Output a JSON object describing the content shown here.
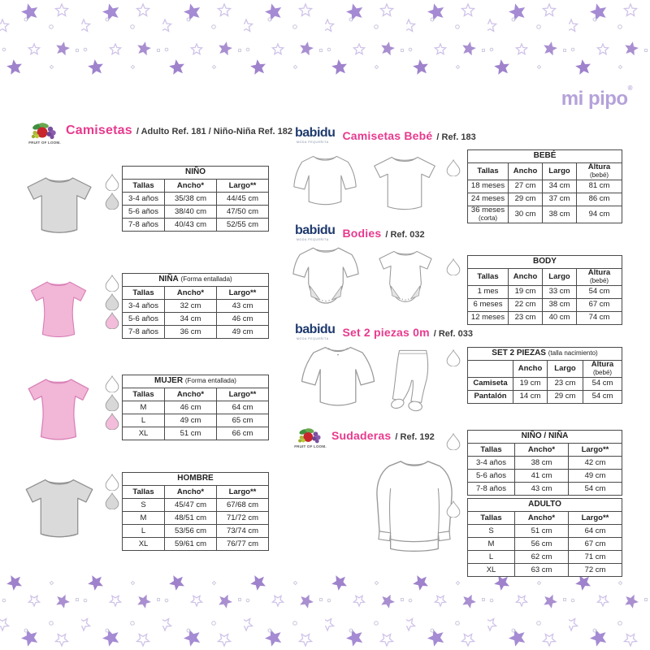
{
  "brand": {
    "mipipo": "mi pipo",
    "registered": "®",
    "fruit_of_the_loom": "FRUIT OF LOOM.",
    "babidu": "babidu",
    "babidu_tagline": "MODA PEQUEÑITA"
  },
  "palette": {
    "pink_heading": "#e83a8e",
    "babidu_navy": "#1e3a6e",
    "mipipo_purple": "#b4a2da",
    "star_filled": "#a58bd3",
    "star_outline": "#cfc2e9",
    "drop_white": "#ffffff",
    "drop_gray": "#d8d8d8",
    "drop_pink": "#f3bcda",
    "shirt_gray": "#dadada",
    "shirt_pink": "#f2b6d7"
  },
  "headers": {
    "camisetas": {
      "title": "Camisetas",
      "rest": "/ Adulto Ref. 181 / Niño-Niña Ref. 182"
    },
    "camisetas_bebe": {
      "title": "Camisetas Bebé",
      "rest": "/ Ref. 183"
    },
    "bodies": {
      "title": "Bodies",
      "rest": "/ Ref. 032"
    },
    "set2": {
      "title": "Set 2 piezas 0m",
      "rest": "/ Ref. 033"
    },
    "sudaderas": {
      "title": "Sudaderas",
      "rest": "/ Ref. 192"
    }
  },
  "drops": {
    "nino": [
      "white",
      "gray"
    ],
    "nina": [
      "white",
      "gray",
      "pink"
    ],
    "mujer": [
      "white",
      "gray",
      "pink"
    ],
    "hombre": [
      "white",
      "gray"
    ],
    "bebe": [
      "white"
    ],
    "body": [
      "white"
    ],
    "set2piezas": [
      "white"
    ],
    "nino_nina": [
      "white"
    ],
    "adulto": [
      "white"
    ]
  },
  "tables": {
    "nino": {
      "title": "NIÑO",
      "note": "",
      "headers": [
        "Tallas",
        "Ancho*",
        "Largo**"
      ],
      "rows": [
        [
          "3-4 años",
          "35/38 cm",
          "44/45 cm"
        ],
        [
          "5-6 años",
          "38/40 cm",
          "47/50 cm"
        ],
        [
          "7-8 años",
          "40/43 cm",
          "52/55 cm"
        ]
      ]
    },
    "nina": {
      "title": "NIÑA",
      "note": "(Forma entallada)",
      "headers": [
        "Tallas",
        "Ancho*",
        "Largo**"
      ],
      "rows": [
        [
          "3-4 años",
          "32 cm",
          "43 cm"
        ],
        [
          "5-6 años",
          "34 cm",
          "46 cm"
        ],
        [
          "7-8 años",
          "36 cm",
          "49 cm"
        ]
      ]
    },
    "mujer": {
      "title": "MUJER",
      "note": "(Forma entallada)",
      "headers": [
        "Tallas",
        "Ancho*",
        "Largo**"
      ],
      "rows": [
        [
          "M",
          "46 cm",
          "64 cm"
        ],
        [
          "L",
          "49 cm",
          "65 cm"
        ],
        [
          "XL",
          "51 cm",
          "66 cm"
        ]
      ]
    },
    "hombre": {
      "title": "HOMBRE",
      "note": "",
      "headers": [
        "Tallas",
        "Ancho*",
        "Largo**"
      ],
      "rows": [
        [
          "S",
          "45/47 cm",
          "67/68 cm"
        ],
        [
          "M",
          "48/51 cm",
          "71/72 cm"
        ],
        [
          "L",
          "53/56 cm",
          "73/74 cm"
        ],
        [
          "XL",
          "59/61 cm",
          "76/77 cm"
        ]
      ]
    },
    "bebe": {
      "title": "BEBÉ",
      "note": "",
      "headers": [
        "Tallas",
        "Ancho",
        "Largo",
        "Altura (bebé)"
      ],
      "rows": [
        [
          "18 meses",
          "27 cm",
          "34 cm",
          "81 cm"
        ],
        [
          "24 meses",
          "29 cm",
          "37 cm",
          "86 cm"
        ],
        [
          "36 meses (corta)",
          "30 cm",
          "38 cm",
          "94 cm"
        ]
      ]
    },
    "body": {
      "title": "BODY",
      "note": "",
      "headers": [
        "Tallas",
        "Ancho",
        "Largo",
        "Altura (bebé)"
      ],
      "rows": [
        [
          "1 mes",
          "19 cm",
          "33 cm",
          "54 cm"
        ],
        [
          "6 meses",
          "22 cm",
          "38 cm",
          "67 cm"
        ],
        [
          "12 meses",
          "23 cm",
          "40 cm",
          "74 cm"
        ]
      ]
    },
    "set2piezas": {
      "title": "SET 2 PIEZAS",
      "note": "(talla nacimiento)",
      "headers": [
        "",
        "Ancho",
        "Largo",
        "Altura (bebé)"
      ],
      "rows": [
        [
          "Camiseta",
          "19 cm",
          "23 cm",
          "54 cm"
        ],
        [
          "Pantalón",
          "14 cm",
          "29 cm",
          "54 cm"
        ]
      ]
    },
    "nino_nina": {
      "title": "NIÑO / NIÑA",
      "note": "",
      "headers": [
        "Tallas",
        "Ancho*",
        "Largo**"
      ],
      "rows": [
        [
          "3-4 años",
          "38 cm",
          "42 cm"
        ],
        [
          "5-6 años",
          "41 cm",
          "49 cm"
        ],
        [
          "7-8 años",
          "43 cm",
          "54 cm"
        ]
      ]
    },
    "adulto": {
      "title": "ADULTO",
      "note": "",
      "headers": [
        "Tallas",
        "Ancho*",
        "Largo**"
      ],
      "rows": [
        [
          "S",
          "51 cm",
          "64 cm"
        ],
        [
          "M",
          "56 cm",
          "67 cm"
        ],
        [
          "L",
          "62 cm",
          "71 cm"
        ],
        [
          "XL",
          "63 cm",
          "72 cm"
        ]
      ]
    }
  }
}
